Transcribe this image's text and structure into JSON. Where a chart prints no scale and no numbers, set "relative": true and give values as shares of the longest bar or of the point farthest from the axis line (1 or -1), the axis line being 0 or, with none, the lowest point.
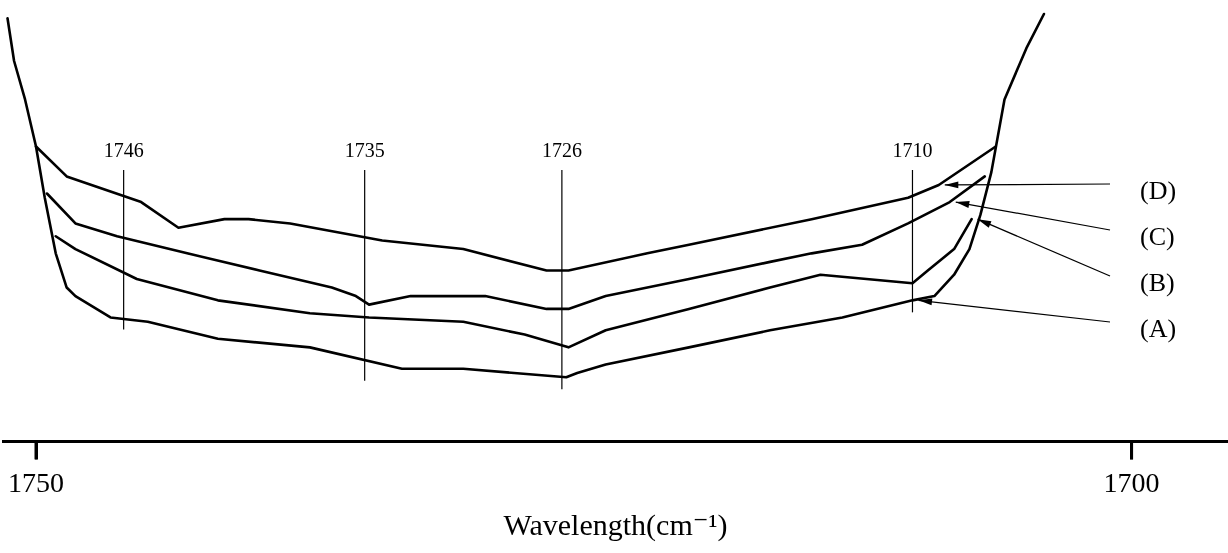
{
  "chart_data": {
    "type": "line",
    "xlabel": "Wavelength(cm⁻¹)",
    "relative": true,
    "legend": false,
    "grid": false,
    "marker": "none",
    "line_style": "solid",
    "xlim": [
      1751.5,
      1695.6
    ],
    "xticks": [
      1750,
      1700
    ],
    "ref_lines": [
      {
        "axis": "x",
        "value": 1746,
        "label": "1746",
        "color": "#000000"
      },
      {
        "axis": "x",
        "value": 1735,
        "label": "1735",
        "color": "#000000"
      },
      {
        "axis": "x",
        "value": 1726,
        "label": "1726",
        "color": "#000000"
      },
      {
        "axis": "x",
        "value": 1710,
        "label": "1710",
        "color": "#000000"
      }
    ],
    "series": [
      {
        "name": "(A)",
        "color": "#000000",
        "x": [
          1751.3,
          1751.0,
          1750.5,
          1750.0,
          1749.6,
          1749.1,
          1748.6,
          1748.2,
          1746.6,
          1744.9,
          1741.7,
          1737.5,
          1733.3,
          1730.5,
          1725.8,
          1725.3,
          1724.0,
          1720.2,
          1716.5,
          1713.2,
          1710.0,
          1709.0,
          1708.1,
          1707.4,
          1706.9,
          1706.4,
          1705.8,
          1704.8,
          1704.0
        ],
        "values": [
          0.99,
          0.89,
          0.8,
          0.69,
          0.57,
          0.44,
          0.36,
          0.34,
          0.29,
          0.28,
          0.24,
          0.22,
          0.17,
          0.17,
          0.15,
          0.16,
          0.18,
          0.22,
          0.26,
          0.29,
          0.33,
          0.34,
          0.39,
          0.45,
          0.53,
          0.63,
          0.8,
          0.92,
          1.0
        ]
      },
      {
        "name": "(B)",
        "color": "#000000",
        "x": [
          1749.1,
          1748.2,
          1745.4,
          1741.7,
          1737.5,
          1734.8,
          1730.5,
          1727.7,
          1725.7,
          1724.0,
          1720.2,
          1716.5,
          1714.2,
          1710.0,
          1709.3,
          1708.1,
          1707.3
        ],
        "values": [
          0.48,
          0.45,
          0.38,
          0.33,
          0.3,
          0.29,
          0.28,
          0.25,
          0.22,
          0.26,
          0.31,
          0.36,
          0.39,
          0.37,
          0.4,
          0.45,
          0.52
        ]
      },
      {
        "name": "(C)",
        "color": "#000000",
        "x": [
          1749.5,
          1748.2,
          1746.3,
          1743.1,
          1739.8,
          1736.5,
          1735.4,
          1734.8,
          1732.9,
          1729.5,
          1726.7,
          1725.7,
          1724.0,
          1720.2,
          1716.5,
          1714.6,
          1712.3,
          1710.2,
          1708.3,
          1706.7
        ],
        "values": [
          0.58,
          0.51,
          0.48,
          0.44,
          0.4,
          0.36,
          0.34,
          0.32,
          0.34,
          0.34,
          0.31,
          0.31,
          0.34,
          0.38,
          0.42,
          0.44,
          0.46,
          0.51,
          0.56,
          0.62
        ]
      },
      {
        "name": "(D)",
        "color": "#000000",
        "x": [
          1750.0,
          1748.6,
          1745.2,
          1743.5,
          1741.4,
          1740.3,
          1738.4,
          1734.2,
          1730.5,
          1726.7,
          1725.7,
          1722.1,
          1720.2,
          1714.6,
          1710.2,
          1708.8,
          1706.2
        ],
        "values": [
          0.69,
          0.62,
          0.56,
          0.5,
          0.52,
          0.52,
          0.51,
          0.47,
          0.45,
          0.4,
          0.4,
          0.44,
          0.46,
          0.52,
          0.57,
          0.6,
          0.69
        ]
      }
    ]
  }
}
